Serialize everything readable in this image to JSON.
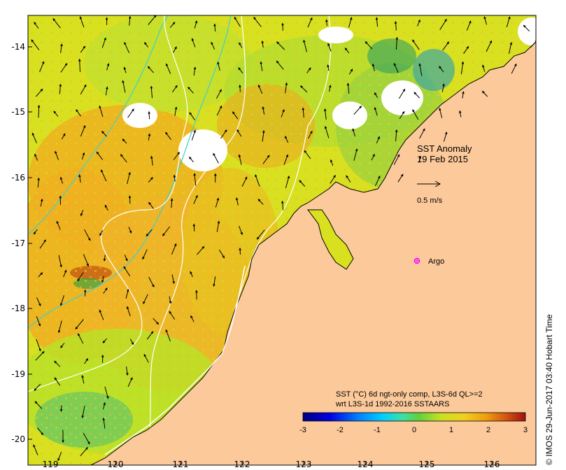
{
  "map": {
    "annotation": {
      "line1": "SST Anomaly",
      "line2": "19 Feb 2015"
    },
    "reference_vector_label": "0.5 m/s",
    "marker": {
      "label": "Argo",
      "color": "#ff00ff"
    },
    "land_color": "#fcc99b",
    "lat_ticks": [
      "-14",
      "-15",
      "-16",
      "-17",
      "-18",
      "-19",
      "-20"
    ],
    "lon_ticks": [
      "119",
      "120",
      "121",
      "122",
      "123",
      "124",
      "125",
      "126"
    ]
  },
  "colorbar": {
    "title_line1": "SST (°C) 6d ngt-only comp, L3S-6d QL>=2",
    "title_line2": "wrt L3S-1d 1992-2016 SSTAARS",
    "ticks": [
      "-3",
      "-2",
      "-1",
      "0",
      "1",
      "2",
      "3"
    ],
    "colors": [
      "#000080",
      "#0000e0",
      "#0060ff",
      "#00c0ff",
      "#40e0c0",
      "#60d040",
      "#c0e020",
      "#f0e020",
      "#f8c020",
      "#f09010",
      "#d05010",
      "#a01010"
    ]
  },
  "credit": "© IMOS 29-Jun-2017 03:40 Hobart Time"
}
